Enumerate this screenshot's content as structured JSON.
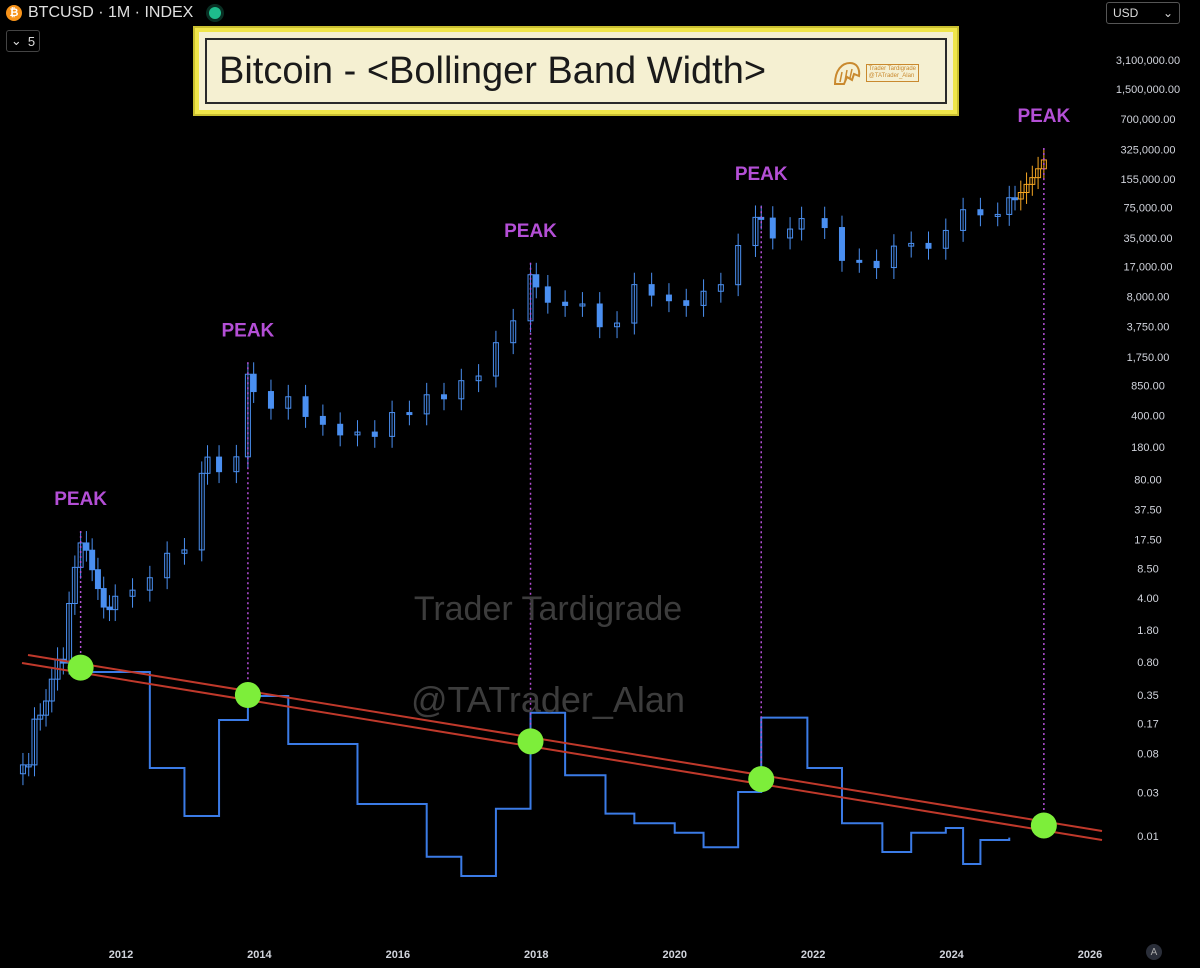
{
  "header": {
    "symbol_label": "BTCUSD · 1M · INDEX",
    "coin_icon": "bitcoin-icon",
    "status_icon": "live-dot-icon",
    "collapse_count": "5"
  },
  "currency": {
    "selected": "USD"
  },
  "title_box": {
    "title": "Bitcoin - <Bollinger Band Width>",
    "logo_line1": "Trader Tardigrade",
    "logo_line2": "@TATrader_Alan"
  },
  "auto_button_label": "A",
  "colors": {
    "background": "#000000",
    "candle": "#4a8ff0",
    "projection": "#f5a623",
    "bbw_line": "#3b7be6",
    "trendline": "#c0392b",
    "peak_label": "#b44fd6",
    "peak_marker": "#7dee3a",
    "title_border": "#f0e64a"
  },
  "chart_data": [
    {
      "type": "line",
      "subtype": "candlestick-monthly-log",
      "series": [
        {
          "x": [
            "2010-08",
            "2010-09",
            "2010-10",
            "2010-11",
            "2010-12",
            "2011-01",
            "2011-02",
            "2011-03",
            "2011-04",
            "2011-05",
            "2011-06",
            "2011-07",
            "2011-08",
            "2011-09",
            "2011-10",
            "2011-11",
            "2011-12",
            "2012-03",
            "2012-06",
            "2012-09",
            "2012-12",
            "2013-03",
            "2013-04",
            "2013-06",
            "2013-09",
            "2013-11",
            "2013-12",
            "2014-03",
            "2014-06",
            "2014-09",
            "2014-12",
            "2015-03",
            "2015-06",
            "2015-09",
            "2015-12",
            "2016-03",
            "2016-06",
            "2016-09",
            "2016-12",
            "2017-03",
            "2017-06",
            "2017-09",
            "2017-12",
            "2018-01",
            "2018-03",
            "2018-06",
            "2018-09",
            "2018-12",
            "2019-03",
            "2019-06",
            "2019-09",
            "2019-12",
            "2020-03",
            "2020-06",
            "2020-09",
            "2020-12",
            "2021-03",
            "2021-04",
            "2021-06",
            "2021-09",
            "2021-11",
            "2022-03",
            "2022-06",
            "2022-09",
            "2022-12",
            "2023-03",
            "2023-06",
            "2023-09",
            "2023-12",
            "2024-03",
            "2024-06",
            "2024-09",
            "2024-11",
            "2024-12",
            "2025-01",
            "2025-02",
            "2025-03",
            "2025-04",
            "2025-05"
          ],
          "values": [
            0.06,
            0.06,
            0.19,
            0.21,
            0.3,
            0.52,
            0.86,
            0.78,
            3.5,
            8.7,
            16.1,
            13.4,
            8.2,
            5.1,
            3.2,
            3.0,
            4.2,
            4.9,
            6.7,
            12.4,
            13.5,
            93,
            140,
            97,
            141,
            1130,
            730,
            480,
            640,
            390,
            320,
            245,
            263,
            236,
            430,
            416,
            673,
            608,
            960,
            1080,
            2500,
            4340,
            13860,
            10200,
            6930,
            6390,
            6630,
            3740,
            4100,
            10800,
            8300,
            7200,
            6400,
            9140,
            10780,
            28900,
            58800,
            57700,
            35000,
            43800,
            57000,
            45500,
            19900,
            19400,
            16600,
            28500,
            30500,
            27000,
            42300,
            71300,
            62700,
            63300,
            96400,
            93400,
            110000,
            135000,
            160000,
            200000,
            250000
          ],
          "name": ""
        }
      ],
      "y_scale": "log",
      "y_ticks": [
        "3,100,000.00",
        "1,500,000.00",
        "700,000.00",
        "325,000.00",
        "155,000.00",
        "75,000.00",
        "35,000.00",
        "17,000.00",
        "8,000.00",
        "3,750.00",
        "1,750.00",
        "850.00",
        "400.00",
        "180.00",
        "80.00",
        "37.50",
        "17.50",
        "8.50",
        "4.00",
        "1.80",
        "0.80",
        "0.35",
        "0.17",
        "0.08",
        "0.03",
        "0.01"
      ],
      "x_ticks": [
        "2012",
        "2014",
        "2016",
        "2018",
        "2020",
        "2022",
        "2024",
        "2026"
      ],
      "annotations": [
        {
          "text": "PEAK",
          "x": "2011-06"
        },
        {
          "text": "PEAK",
          "x": "2013-11"
        },
        {
          "text": "PEAK",
          "x": "2017-12"
        },
        {
          "text": "PEAK",
          "x": "2021-04"
        },
        {
          "text": "PEAK",
          "x": "2025-05"
        }
      ],
      "projection_from": "2025-01"
    },
    {
      "type": "line",
      "subtype": "bollinger-band-width",
      "x": [
        "2011-06",
        "2012-06",
        "2012-12",
        "2013-06",
        "2013-11",
        "2014-06",
        "2015-06",
        "2016-06",
        "2016-12",
        "2017-06",
        "2017-12",
        "2018-06",
        "2019-01",
        "2019-06",
        "2020-01",
        "2020-06",
        "2020-12",
        "2021-04",
        "2021-12",
        "2022-06",
        "2023-01",
        "2023-06",
        "2023-12",
        "2024-03",
        "2024-06",
        "2024-11"
      ],
      "values": [
        0.95,
        0.55,
        0.35,
        0.75,
        0.85,
        0.65,
        0.4,
        0.18,
        0.1,
        0.38,
        0.78,
        0.52,
        0.36,
        0.32,
        0.28,
        0.22,
        0.45,
        0.76,
        0.55,
        0.32,
        0.2,
        0.28,
        0.3,
        0.15,
        0.25,
        0.26
      ],
      "trendline": "descending red line touching the BBW peaks",
      "grid": false,
      "legend": "none"
    }
  ]
}
